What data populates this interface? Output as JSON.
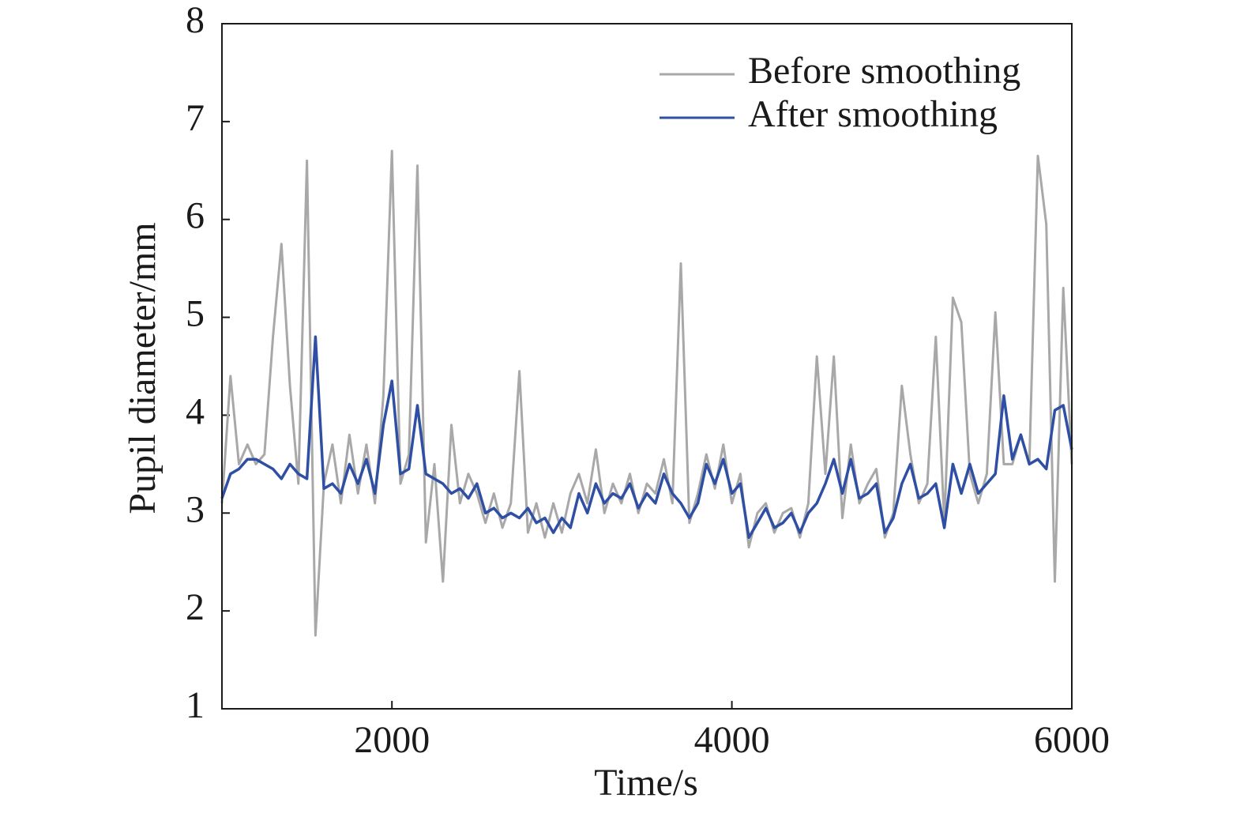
{
  "chart_data": {
    "type": "line",
    "xlabel": "Time/s",
    "ylabel": "Pupil diameter/mm",
    "xlim": [
      1000,
      6000
    ],
    "xticks": [
      2000,
      4000,
      6000
    ],
    "ylim": [
      1,
      8
    ],
    "yticks": [
      1,
      2,
      3,
      4,
      5,
      6,
      7,
      8
    ],
    "legend": "upper right",
    "x": [
      1000,
      1050,
      1100,
      1150,
      1200,
      1250,
      1300,
      1350,
      1400,
      1450,
      1500,
      1550,
      1600,
      1650,
      1700,
      1750,
      1800,
      1850,
      1900,
      1950,
      2000,
      2050,
      2100,
      2150,
      2200,
      2250,
      2300,
      2350,
      2400,
      2450,
      2500,
      2550,
      2600,
      2650,
      2700,
      2750,
      2800,
      2850,
      2900,
      2950,
      3000,
      3050,
      3100,
      3150,
      3200,
      3250,
      3300,
      3350,
      3400,
      3450,
      3500,
      3550,
      3600,
      3650,
      3700,
      3750,
      3800,
      3850,
      3900,
      3950,
      4000,
      4050,
      4100,
      4150,
      4200,
      4250,
      4300,
      4350,
      4400,
      4450,
      4500,
      4550,
      4600,
      4650,
      4700,
      4750,
      4800,
      4850,
      4900,
      4950,
      5000,
      5050,
      5100,
      5150,
      5200,
      5250,
      5300,
      5350,
      5400,
      5450,
      5500,
      5550,
      5600,
      5650,
      5700,
      5750,
      5800,
      5850,
      5900,
      5950,
      6000
    ],
    "series": [
      {
        "name": "Before smoothing",
        "color": "#a8a8a8",
        "values": [
          3.1,
          4.4,
          3.5,
          3.7,
          3.5,
          3.6,
          4.8,
          5.75,
          4.3,
          3.3,
          6.6,
          1.75,
          3.3,
          3.7,
          3.1,
          3.8,
          3.2,
          3.7,
          3.1,
          4.2,
          6.7,
          3.3,
          3.6,
          6.55,
          2.7,
          3.5,
          2.3,
          3.9,
          3.1,
          3.4,
          3.2,
          2.9,
          3.2,
          2.85,
          3.1,
          4.45,
          2.8,
          3.1,
          2.75,
          3.1,
          2.8,
          3.2,
          3.4,
          3.1,
          3.65,
          3.0,
          3.3,
          3.1,
          3.4,
          3.0,
          3.3,
          3.2,
          3.55,
          3.1,
          5.55,
          2.9,
          3.2,
          3.6,
          3.25,
          3.7,
          3.1,
          3.4,
          2.65,
          3.0,
          3.1,
          2.8,
          3.0,
          3.05,
          2.75,
          3.1,
          4.6,
          3.4,
          4.6,
          2.95,
          3.7,
          3.1,
          3.3,
          3.45,
          2.75,
          3.0,
          4.3,
          3.6,
          3.1,
          3.3,
          4.8,
          2.9,
          5.2,
          4.95,
          3.4,
          3.1,
          3.4,
          5.05,
          3.5,
          3.5,
          3.8,
          3.5,
          6.65,
          5.95,
          2.3,
          5.3,
          3.5
        ]
      },
      {
        "name": "After smoothing",
        "color": "#2e4fa3",
        "values": [
          3.15,
          3.4,
          3.45,
          3.55,
          3.55,
          3.5,
          3.45,
          3.35,
          3.5,
          3.4,
          3.35,
          4.8,
          3.25,
          3.3,
          3.2,
          3.5,
          3.3,
          3.55,
          3.2,
          3.9,
          4.35,
          3.4,
          3.45,
          4.1,
          3.4,
          3.35,
          3.3,
          3.2,
          3.25,
          3.15,
          3.3,
          3.0,
          3.05,
          2.95,
          3.0,
          2.95,
          3.05,
          2.9,
          2.95,
          2.8,
          2.95,
          2.85,
          3.2,
          3.0,
          3.3,
          3.1,
          3.2,
          3.15,
          3.3,
          3.05,
          3.2,
          3.1,
          3.4,
          3.2,
          3.1,
          2.95,
          3.1,
          3.5,
          3.3,
          3.55,
          3.2,
          3.3,
          2.75,
          2.9,
          3.05,
          2.85,
          2.9,
          3.0,
          2.8,
          3.0,
          3.1,
          3.3,
          3.55,
          3.2,
          3.55,
          3.15,
          3.2,
          3.3,
          2.8,
          2.95,
          3.3,
          3.5,
          3.15,
          3.2,
          3.3,
          2.85,
          3.5,
          3.2,
          3.5,
          3.2,
          3.3,
          3.4,
          4.2,
          3.55,
          3.8,
          3.5,
          3.55,
          3.45,
          4.05,
          4.1,
          3.65
        ]
      }
    ]
  }
}
